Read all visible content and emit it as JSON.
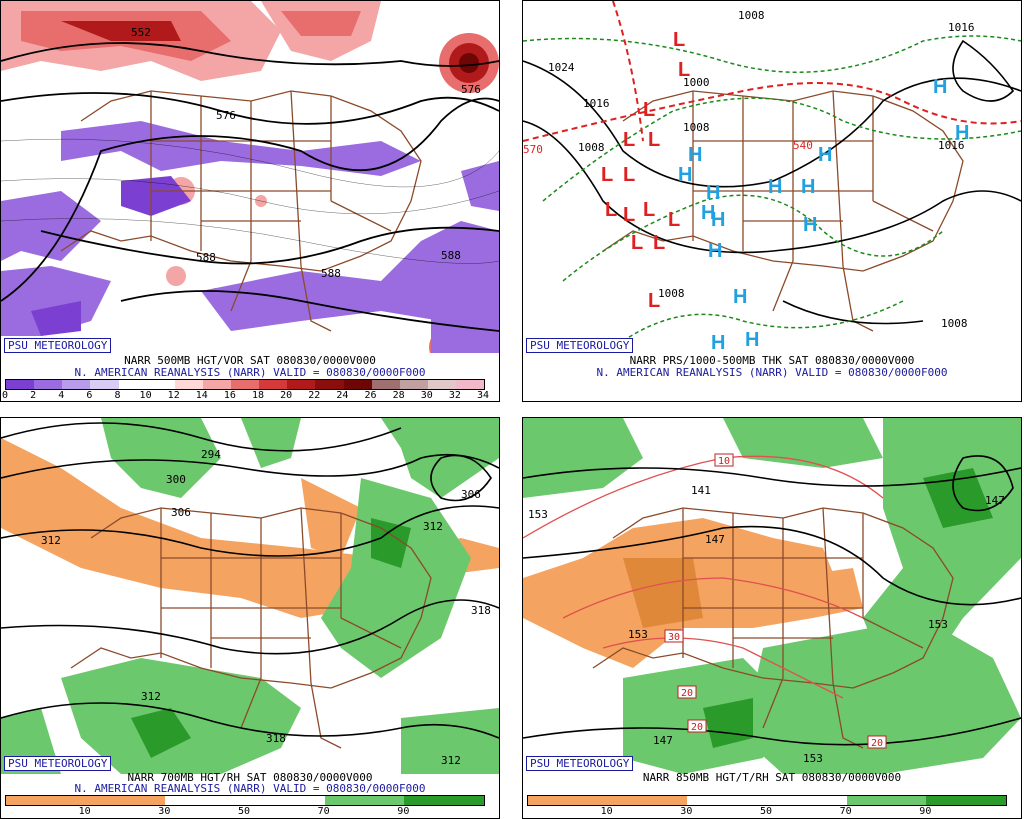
{
  "panels": [
    {
      "logo": "PSU METEOROLOGY",
      "caption1": "NARR 500MB HGT/VOR SAT 080830/0000V000",
      "caption2": "N. AMERICAN REANALYSIS (NARR) VALID = 080830/0000F000",
      "contour_labels": [
        "552",
        "576",
        "588",
        "588",
        "576",
        "588"
      ],
      "colorbar": {
        "colors": [
          "#7b3fd1",
          "#9a6ce0",
          "#b89bea",
          "#d9ccf4",
          "#ffffff",
          "#ffffff",
          "#ffd7d7",
          "#f4a5a5",
          "#e86d6d",
          "#d43a3a",
          "#b01a1a",
          "#8a0e0e",
          "#6f0606",
          "#a07070",
          "#c0a0a0",
          "#e0c8c8",
          "#f0b8c8"
        ],
        "ticks": [
          "0",
          "2",
          "4",
          "6",
          "8",
          "10",
          "12",
          "14",
          "16",
          "18",
          "20",
          "22",
          "24",
          "26",
          "28",
          "30",
          "32",
          "34"
        ]
      }
    },
    {
      "logo": "PSU METEOROLOGY",
      "caption1": "NARR PRS/1000-500MB THK SAT 080830/0000V000",
      "caption2": "N. AMERICAN REANALYSIS (NARR) VALID = 080830/0000F000",
      "contour_labels": [
        "1008",
        "1024",
        "1016",
        "1008",
        "1008",
        "1000",
        "1016",
        "1016",
        "1008",
        "1008",
        "570",
        "540",
        "1016",
        "1008"
      ],
      "high_marker": "H",
      "low_marker": "L"
    },
    {
      "logo": "PSU METEOROLOGY",
      "caption1": "NARR 700MB HGT/RH SAT 080830/0000V000",
      "caption2": "N. AMERICAN REANALYSIS (NARR) VALID = 080830/0000F000",
      "contour_labels": [
        "294",
        "300",
        "306",
        "312",
        "306",
        "312",
        "318",
        "312",
        "318",
        "312"
      ],
      "colorbar": {
        "colors": [
          "#f4a460",
          "#f4a460",
          "#ffffff",
          "#ffffff",
          "#6cc86c",
          "#2a9a2a"
        ],
        "ticks": [
          "10",
          "30",
          "50",
          "70",
          "90"
        ]
      }
    },
    {
      "logo": "PSU METEOROLOGY",
      "caption1": "NARR 850MB HGT/T/RH SAT 080830/0000V000",
      "caption2": "",
      "contour_labels": [
        "153",
        "141",
        "147",
        "147",
        "153",
        "153",
        "153",
        "147"
      ],
      "temp_labels": [
        "10",
        "30",
        "20",
        "20",
        "20"
      ],
      "colorbar": {
        "colors": [
          "#f4a460",
          "#f4a460",
          "#ffffff",
          "#ffffff",
          "#6cc86c",
          "#2a9a2a"
        ],
        "ticks": [
          "10",
          "30",
          "50",
          "70",
          "90"
        ]
      }
    }
  ]
}
